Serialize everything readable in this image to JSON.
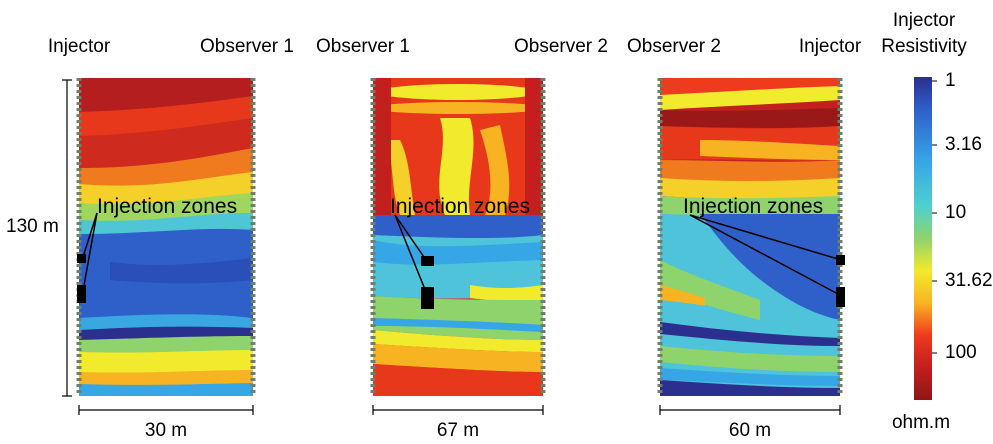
{
  "panels": [
    {
      "left_label": "Injector",
      "right_label": "Observer 1",
      "width_label": "30 m",
      "zone_label": "Injection zones"
    },
    {
      "left_label": "Observer 1",
      "right_label": "Observer 2",
      "width_label": "67 m",
      "zone_label": "Injection zones"
    },
    {
      "left_label": "Observer 2",
      "right_label": "Injector",
      "width_label": "60 m",
      "zone_label": "Injection zones"
    }
  ],
  "depth_label": "130 m",
  "colorbar": {
    "title_line1": "Injector",
    "title_line2": "Resistivity",
    "ticks": [
      "1",
      "3.16",
      "10",
      "31.62",
      "100"
    ],
    "unit": "ohm.m",
    "scale": "log",
    "colors": [
      "#2b2f8e",
      "#2f5fc9",
      "#36a6e6",
      "#4fd0cf",
      "#8fd36c",
      "#f2ea2c",
      "#f8b322",
      "#ee3b1e",
      "#c21f1f",
      "#8e1616"
    ]
  }
}
